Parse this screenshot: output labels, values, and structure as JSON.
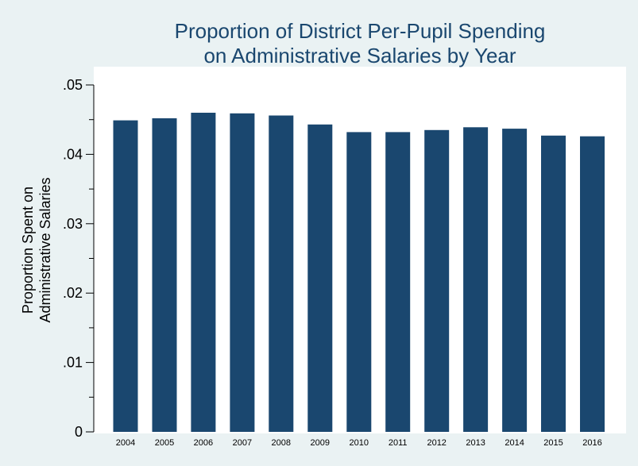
{
  "chart_data": {
    "type": "bar",
    "title": [
      "Proportion of District Per-Pupil Spending",
      "on Administrative Salaries by Year"
    ],
    "xlabel": "",
    "ylabel": [
      "Proportion Spent on",
      "Administrative Salaries"
    ],
    "categories": [
      "2004",
      "2005",
      "2006",
      "2007",
      "2008",
      "2009",
      "2010",
      "2011",
      "2012",
      "2013",
      "2014",
      "2015",
      "2016"
    ],
    "values": [
      0.0449,
      0.0452,
      0.046,
      0.0459,
      0.0456,
      0.0443,
      0.0432,
      0.0432,
      0.0435,
      0.0439,
      0.0437,
      0.0427,
      0.0426
    ],
    "ylim": [
      0,
      0.05
    ],
    "yticks": [
      0,
      0.01,
      0.02,
      0.03,
      0.04,
      0.05
    ],
    "ytick_labels": [
      "0",
      ".01",
      ".02",
      ".03",
      ".04",
      ".05"
    ],
    "yminor_step": 0.005,
    "grid": false,
    "colors": {
      "bar": "#1a476f",
      "title": "#1a476f",
      "outer_background": "#eaf2f3",
      "plot_background": "#ffffff"
    }
  }
}
